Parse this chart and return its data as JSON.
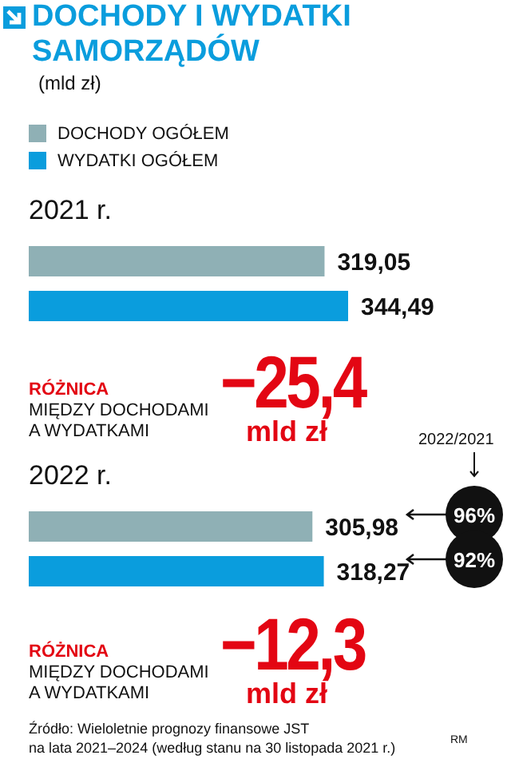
{
  "chart_data": {
    "type": "bar",
    "orientation": "horizontal",
    "title": "DOCHODY I WYDATKI SAMORZĄDÓW",
    "subtitle": "(mld zł)",
    "categories": [
      "2021 r.",
      "2022 r."
    ],
    "series": [
      {
        "name": "DOCHODY OGÓŁEM",
        "color": "#8fb0b5",
        "values": [
          319.05,
          305.98
        ],
        "value_labels": [
          "319,05",
          "305,98"
        ]
      },
      {
        "name": "WYDATKI OGÓŁEM",
        "color": "#0a9ddd",
        "values": [
          344.49,
          318.27
        ],
        "value_labels": [
          "344,49",
          "318,27"
        ]
      }
    ],
    "legend": "top left",
    "annotations": [
      "RÓŻNICA\nMIĘDZY DOCHODAMI\nA WYDATKAMI",
      "−25,4",
      "mld zł",
      "RÓŻNICA\nMIĘDZY DOCHODAMI\nA WYDATKAMI",
      "−12,3",
      "mld zł",
      "2022/2021",
      "96%",
      "92%",
      "Źródło: Wieloletnie prognozy finansowe JST\nna lata 2021–2024 (według stanu na 30 listopada 2021 r.)",
      "RM"
    ]
  }
}
